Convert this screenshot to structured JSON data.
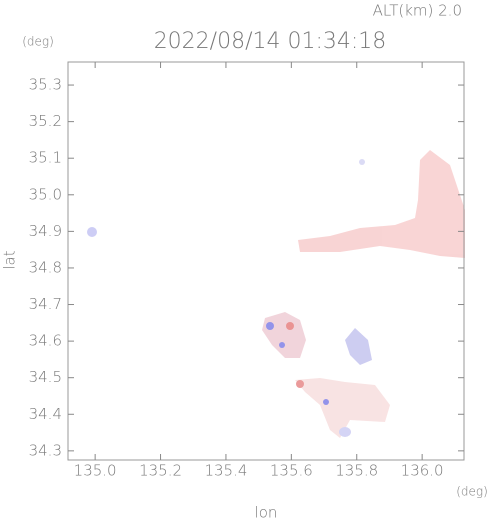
{
  "chart_data": {
    "type": "map",
    "title": "2022/08/14 01:34:18",
    "subtitle": "ALT(km) 2.0",
    "y_unit": "(deg)",
    "x_unit": "(deg)",
    "xlabel": "lon",
    "ylabel": "lat",
    "xlim": [
      134.917,
      136.128
    ],
    "ylim": [
      34.275,
      35.363
    ],
    "xticks": [
      {
        "value": 135,
        "label": "135.0"
      },
      135.2,
      135.4,
      135.6,
      135.8,
      {
        "value": 136,
        "label": "136.0"
      }
    ],
    "yticks": [
      34.3,
      34.4,
      34.5,
      34.6,
      34.7,
      34.8,
      34.9,
      {
        "value": 35,
        "label": "35.0"
      },
      35.1,
      35.2,
      35.3
    ]
  }
}
